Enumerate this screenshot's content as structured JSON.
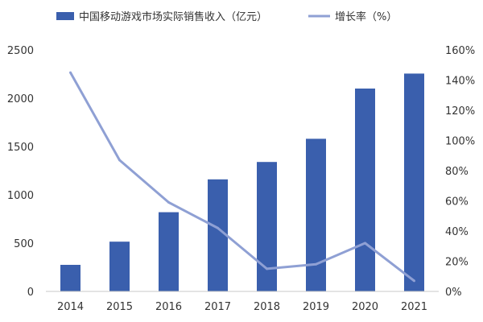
{
  "chart_data": {
    "type": "bar",
    "categories": [
      "2014",
      "2015",
      "2016",
      "2017",
      "2018",
      "2019",
      "2020",
      "2021"
    ],
    "series": [
      {
        "name": "中国移动游戏市场实际销售收入（亿元）",
        "type": "bar",
        "axis": "left",
        "color": "#3a5fad",
        "values": [
          275,
          515,
          820,
          1160,
          1340,
          1580,
          2100,
          2255
        ]
      },
      {
        "name": "增长率（%）",
        "type": "line",
        "axis": "right",
        "color": "#8fa0d4",
        "values": [
          145,
          87,
          59,
          42,
          15,
          18,
          32,
          7
        ]
      }
    ],
    "left_axis": {
      "min": 0,
      "max": 2500,
      "ticks": [
        "0",
        "500",
        "1000",
        "1500",
        "2000",
        "2500"
      ]
    },
    "right_axis": {
      "min": 0,
      "max": 160,
      "ticks": [
        "0%",
        "20%",
        "40%",
        "60%",
        "80%",
        "100%",
        "120%",
        "140%",
        "160%"
      ]
    },
    "grid": false,
    "legend_position": "top"
  }
}
